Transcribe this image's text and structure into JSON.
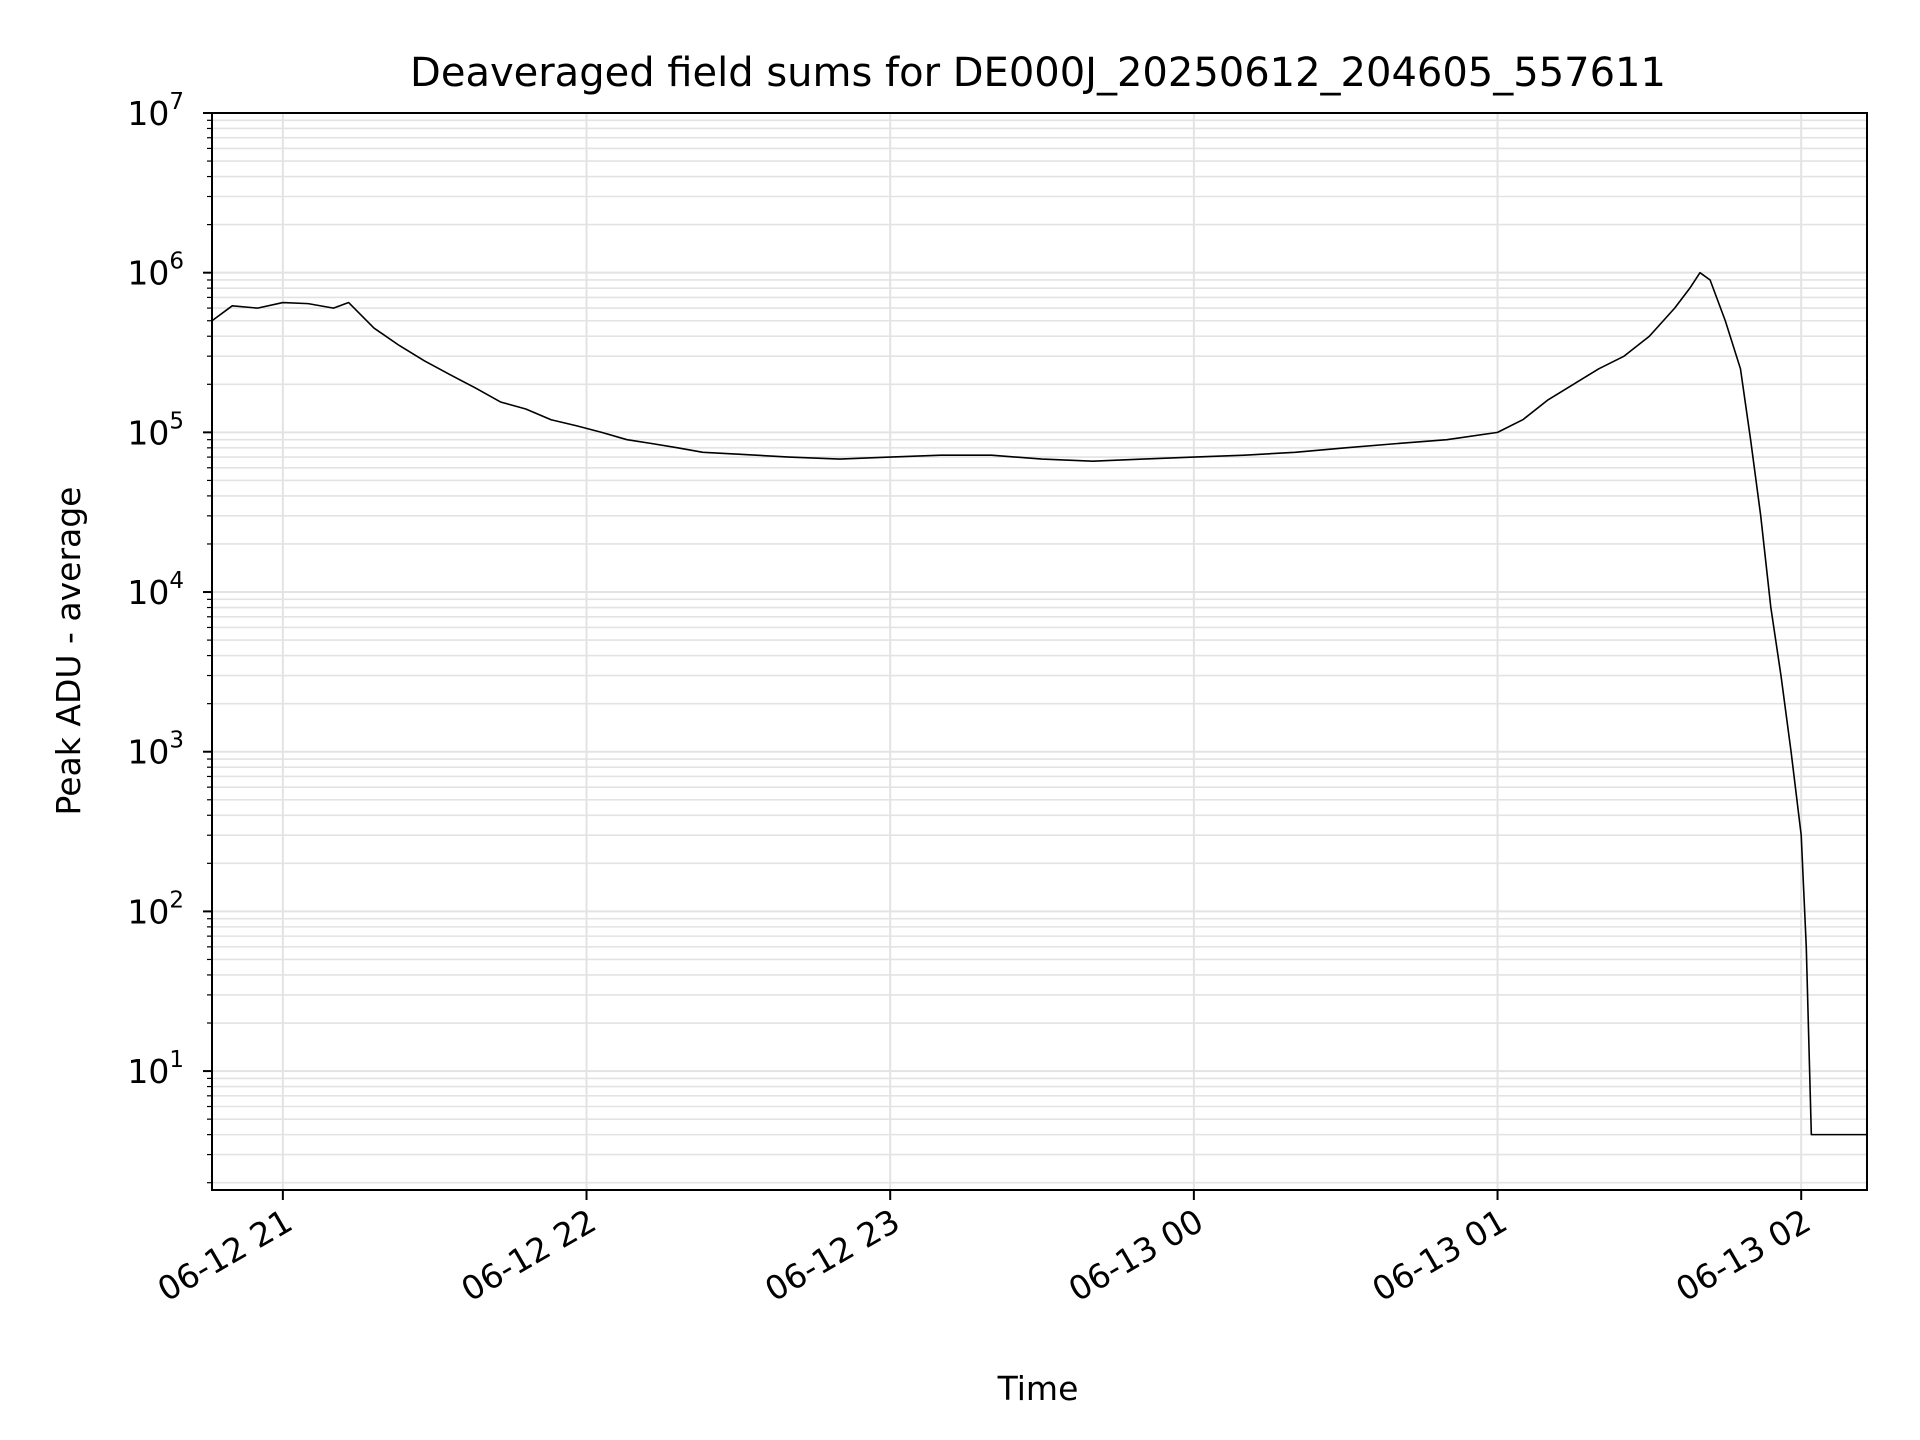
{
  "chart_data": {
    "type": "line",
    "title": "Deaveraged field sums for DE000J_20250612_204605_557611",
    "xlabel": "Time",
    "ylabel": "Peak ADU - average",
    "yscale": "log",
    "ylim": [
      1.8,
      10000000
    ],
    "xlim": [
      "06-12 20:46",
      "06-13 02:13"
    ],
    "grid": true,
    "line_color": "#000000",
    "grid_color": "#e3e3e3",
    "x_tick_labels": [
      "06-12 21",
      "06-12 22",
      "06-12 23",
      "06-13 00",
      "06-13 01",
      "06-13 02"
    ],
    "x_tick_values": [
      "06-12 21:00",
      "06-12 22:00",
      "06-12 23:00",
      "06-13 00:00",
      "06-13 01:00",
      "06-13 02:00"
    ],
    "y_tick_labels": [
      {
        "base": "10",
        "exp": "1"
      },
      {
        "base": "10",
        "exp": "2"
      },
      {
        "base": "10",
        "exp": "3"
      },
      {
        "base": "10",
        "exp": "4"
      },
      {
        "base": "10",
        "exp": "5"
      },
      {
        "base": "10",
        "exp": "6"
      },
      {
        "base": "10",
        "exp": "7"
      }
    ],
    "series": [
      {
        "points": [
          [
            "06-12 20:46",
            500000
          ],
          [
            "06-12 20:50",
            620000
          ],
          [
            "06-12 20:55",
            600000
          ],
          [
            "06-12 21:00",
            650000
          ],
          [
            "06-12 21:05",
            640000
          ],
          [
            "06-12 21:10",
            600000
          ],
          [
            "06-12 21:13",
            650000
          ],
          [
            "06-12 21:18",
            450000
          ],
          [
            "06-12 21:23",
            350000
          ],
          [
            "06-12 21:28",
            280000
          ],
          [
            "06-12 21:33",
            230000
          ],
          [
            "06-12 21:38",
            190000
          ],
          [
            "06-12 21:43",
            155000
          ],
          [
            "06-12 21:48",
            140000
          ],
          [
            "06-12 21:53",
            120000
          ],
          [
            "06-12 21:58",
            110000
          ],
          [
            "06-12 22:03",
            100000
          ],
          [
            "06-12 22:08",
            90000
          ],
          [
            "06-12 22:13",
            85000
          ],
          [
            "06-12 22:18",
            80000
          ],
          [
            "06-12 22:23",
            75000
          ],
          [
            "06-12 22:30",
            73000
          ],
          [
            "06-12 22:40",
            70000
          ],
          [
            "06-12 22:50",
            68000
          ],
          [
            "06-12 23:00",
            70000
          ],
          [
            "06-12 23:10",
            72000
          ],
          [
            "06-12 23:20",
            72000
          ],
          [
            "06-12 23:30",
            68000
          ],
          [
            "06-12 23:40",
            66000
          ],
          [
            "06-12 23:50",
            68000
          ],
          [
            "06-13 00:00",
            70000
          ],
          [
            "06-13 00:10",
            72000
          ],
          [
            "06-13 00:20",
            75000
          ],
          [
            "06-13 00:30",
            80000
          ],
          [
            "06-13 00:40",
            85000
          ],
          [
            "06-13 00:50",
            90000
          ],
          [
            "06-13 01:00",
            100000
          ],
          [
            "06-13 01:05",
            120000
          ],
          [
            "06-13 01:10",
            160000
          ],
          [
            "06-13 01:15",
            200000
          ],
          [
            "06-13 01:20",
            250000
          ],
          [
            "06-13 01:25",
            300000
          ],
          [
            "06-13 01:30",
            400000
          ],
          [
            "06-13 01:35",
            600000
          ],
          [
            "06-13 01:38",
            800000
          ],
          [
            "06-13 01:40",
            1000000
          ],
          [
            "06-13 01:42",
            900000
          ],
          [
            "06-13 01:45",
            500000
          ],
          [
            "06-13 01:48",
            250000
          ],
          [
            "06-13 01:50",
            90000
          ],
          [
            "06-13 01:52",
            30000
          ],
          [
            "06-13 01:54",
            8000
          ],
          [
            "06-13 01:56",
            3000
          ],
          [
            "06-13 01:58",
            1000
          ],
          [
            "06-13 02:00",
            300
          ],
          [
            "06-13 02:01",
            60
          ],
          [
            "06-13 02:02",
            4
          ],
          [
            "06-13 02:13",
            4
          ]
        ]
      }
    ]
  }
}
